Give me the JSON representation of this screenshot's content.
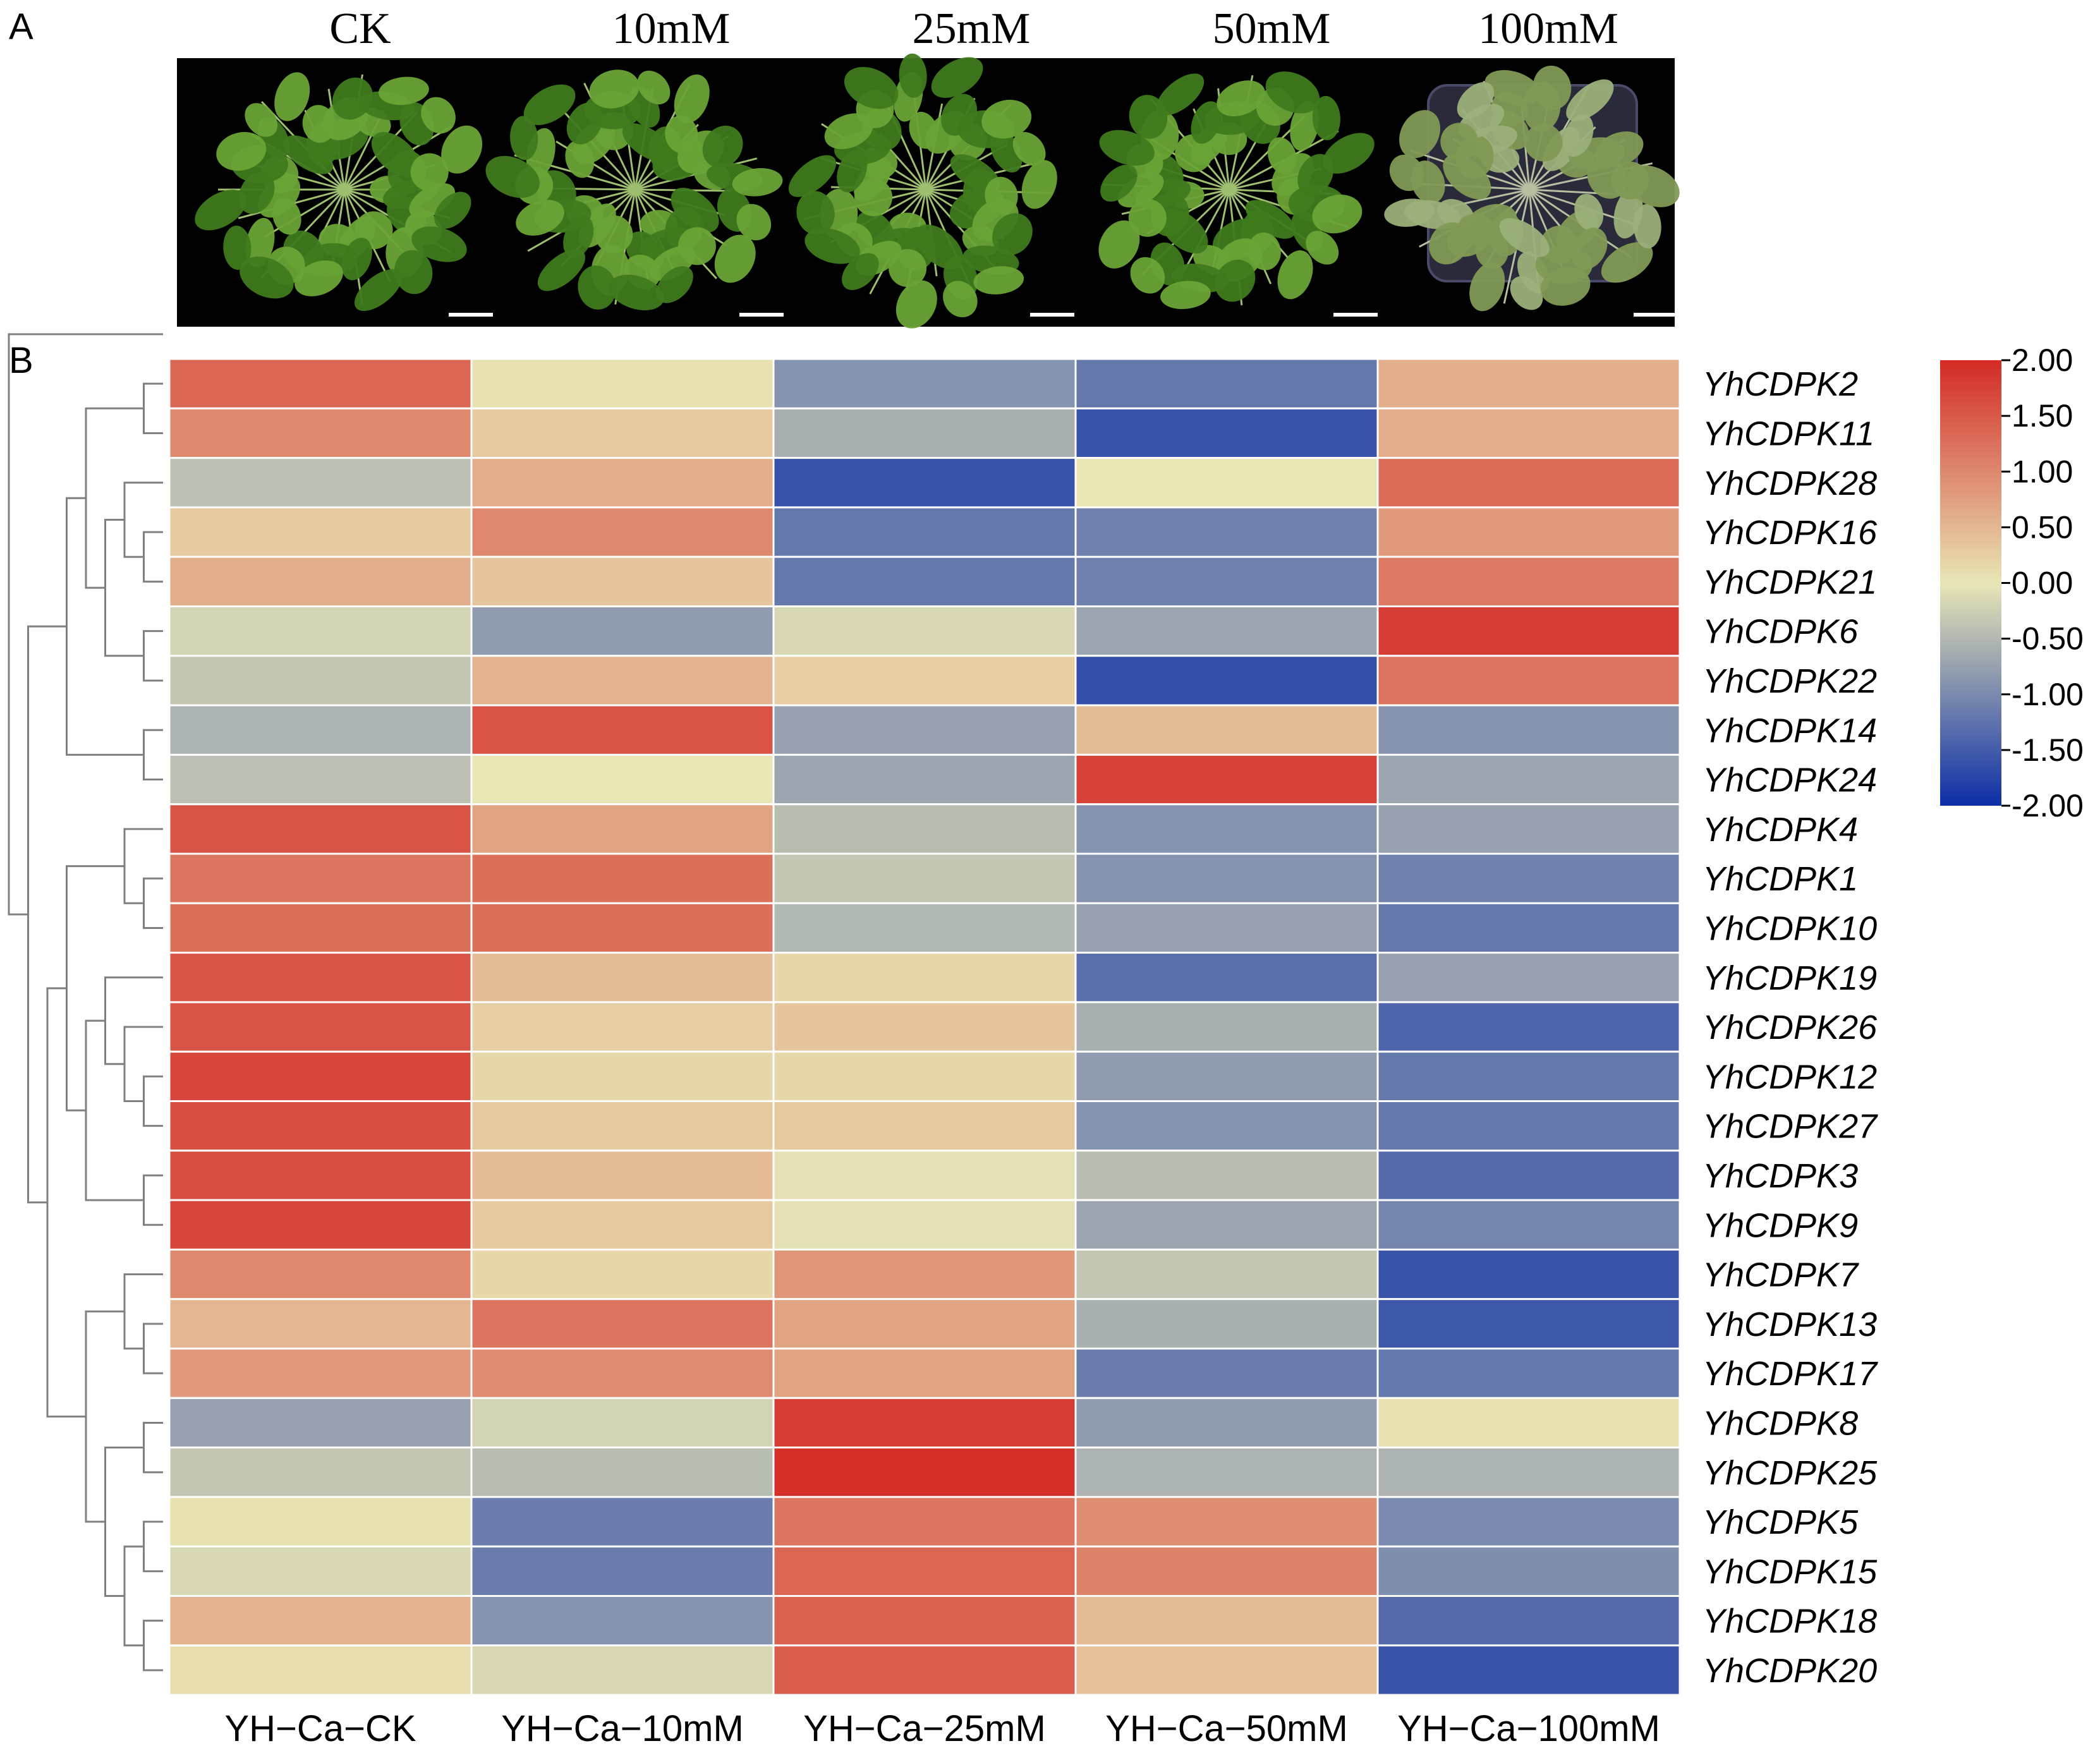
{
  "panel_a": {
    "letter": "A",
    "photo_labels": [
      "CK",
      "10mM",
      "25mM",
      "50mM",
      "100mM"
    ],
    "colors": {
      "background": "#000000",
      "leaf": "#3f7a1e",
      "leaf_light": "#6aa336",
      "leaf_pale": "#9bb07a",
      "scale_bar": "#ffffff"
    }
  },
  "panel_b": {
    "letter": "B"
  },
  "chart_data": {
    "type": "heatmap",
    "title": "",
    "columns": [
      "YH−Ca−CK",
      "YH−Ca−10mM",
      "YH−Ca−25mM",
      "YH−Ca−50mM",
      "YH−Ca−100mM"
    ],
    "rows": [
      "YhCDPK2",
      "YhCDPK11",
      "YhCDPK28",
      "YhCDPK16",
      "YhCDPK21",
      "YhCDPK6",
      "YhCDPK22",
      "YhCDPK14",
      "YhCDPK24",
      "YhCDPK4",
      "YhCDPK1",
      "YhCDPK10",
      "YhCDPK19",
      "YhCDPK26",
      "YhCDPK12",
      "YhCDPK27",
      "YhCDPK3",
      "YhCDPK9",
      "YhCDPK7",
      "YhCDPK13",
      "YhCDPK17",
      "YhCDPK8",
      "YhCDPK25",
      "YhCDPK5",
      "YhCDPK15",
      "YhCDPK18",
      "YhCDPK20"
    ],
    "values": [
      [
        1.35,
        0.05,
        -0.9,
        -1.2,
        0.6
      ],
      [
        1.0,
        0.3,
        -0.6,
        -1.6,
        0.6
      ],
      [
        -0.4,
        0.6,
        -1.6,
        0.0,
        1.3
      ],
      [
        0.3,
        1.0,
        -1.2,
        -1.1,
        0.8
      ],
      [
        0.6,
        0.35,
        -1.2,
        -1.1,
        1.15
      ],
      [
        -0.2,
        -0.8,
        -0.15,
        -0.7,
        1.8
      ],
      [
        -0.35,
        0.55,
        0.25,
        -1.65,
        1.2
      ],
      [
        -0.55,
        1.55,
        -0.75,
        0.45,
        -0.9
      ],
      [
        -0.4,
        0.0,
        -0.7,
        1.75,
        -0.7
      ],
      [
        1.55,
        0.7,
        -0.45,
        -0.9,
        -0.75
      ],
      [
        1.2,
        1.25,
        -0.35,
        -0.9,
        -1.1
      ],
      [
        1.25,
        1.25,
        -0.5,
        -0.75,
        -1.2
      ],
      [
        1.55,
        0.45,
        0.15,
        -1.3,
        -0.75
      ],
      [
        1.55,
        0.25,
        0.35,
        -0.6,
        -1.4
      ],
      [
        1.7,
        0.15,
        0.15,
        -0.8,
        -1.2
      ],
      [
        1.6,
        0.3,
        0.3,
        -0.9,
        -1.2
      ],
      [
        1.6,
        0.45,
        -0.05,
        -0.45,
        -1.35
      ],
      [
        1.7,
        0.3,
        -0.05,
        -0.7,
        -1.05
      ],
      [
        1.0,
        0.15,
        0.85,
        -0.35,
        -1.6
      ],
      [
        0.5,
        1.2,
        0.7,
        -0.6,
        -1.55
      ],
      [
        0.8,
        0.95,
        0.7,
        -1.15,
        -1.2
      ],
      [
        -0.75,
        -0.2,
        1.8,
        -0.8,
        0.05
      ],
      [
        -0.35,
        -0.45,
        1.95,
        -0.55,
        -0.55
      ],
      [
        0.05,
        -1.15,
        1.2,
        0.95,
        -1.0
      ],
      [
        -0.15,
        -1.15,
        1.35,
        1.05,
        -0.95
      ],
      [
        0.55,
        -0.9,
        1.4,
        0.45,
        -1.35
      ],
      [
        0.1,
        -0.15,
        1.45,
        0.4,
        -1.6
      ]
    ],
    "colorbar": {
      "min": -2.0,
      "max": 2.0,
      "ticks": [
        "2.00",
        "1.50",
        "1.00",
        "0.50",
        "0.00",
        "-0.50",
        "-1.00",
        "-1.50",
        "-2.00"
      ],
      "colors": {
        "low": "#0d2ea6",
        "mid": "#e9e6b6",
        "high": "#d32a25"
      }
    },
    "row_dendrogram": {
      "tree": [
        [
          [
            [
              [
                "YhCDPK2",
                "YhCDPK11"
              ],
              [
                [
                  "YhCDPK28",
                  [
                    "YhCDPK16",
                    "YhCDPK21"
                  ]
                ],
                [
                  "YhCDPK6",
                  "YhCDPK22"
                ]
              ]
            ],
            [
              "YhCDPK14",
              "YhCDPK24"
            ]
          ],
          [
            [
              [
                "YhCDPK4",
                [
                  "YhCDPK1",
                  "YhCDPK10"
                ]
              ],
              [
                [
                  "YhCDPK19",
                  [
                    "YhCDPK26",
                    [
                      "YhCDPK12",
                      "YhCDPK27"
                    ]
                  ]
                ],
                [
                  "YhCDPK3",
                  "YhCDPK9"
                ]
              ]
            ],
            [
              [
                "YhCDPK7",
                [
                  "YhCDPK13",
                  "YhCDPK17"
                ]
              ],
              [
                [
                  "YhCDPK8",
                  "YhCDPK25"
                ],
                [
                  [
                    "YhCDPK5",
                    "YhCDPK15"
                  ],
                  [
                    "YhCDPK18",
                    "YhCDPK20"
                  ]
                ]
              ]
            ]
          ]
        ]
      ],
      "color": "#808080"
    }
  }
}
